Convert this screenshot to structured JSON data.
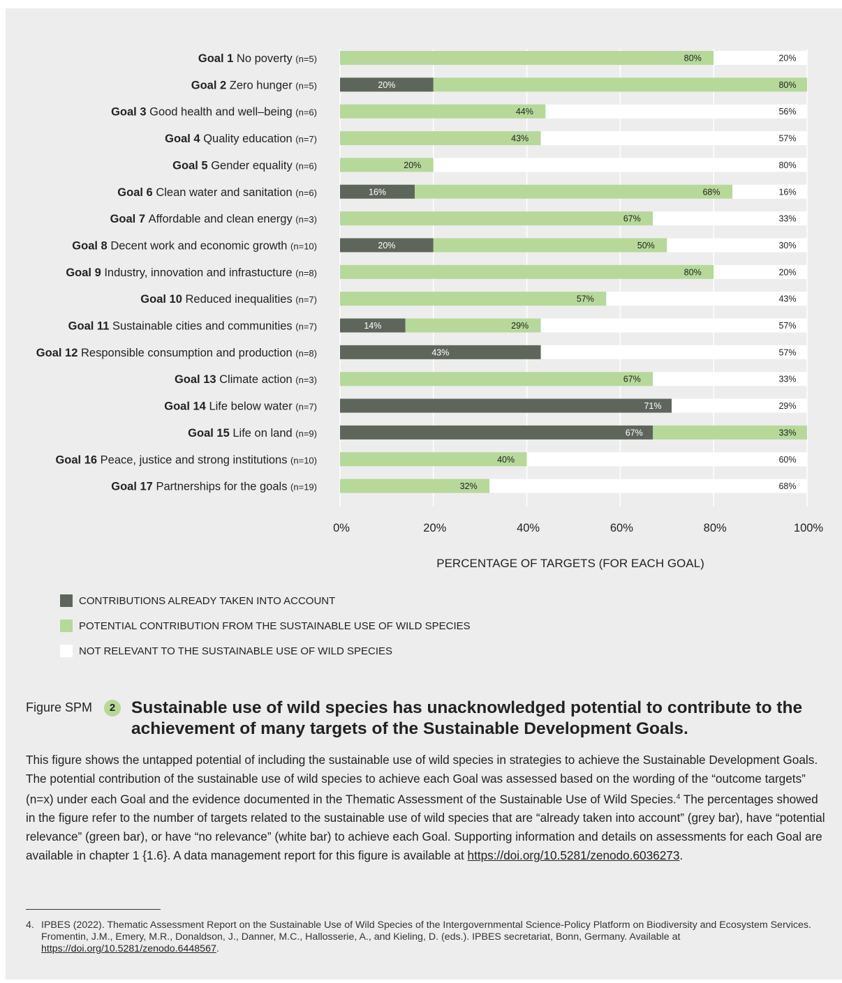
{
  "chart_data": {
    "type": "bar",
    "stacked": true,
    "orientation": "horizontal",
    "categories": [
      {
        "goal": "Goal 1",
        "name": "No poverty",
        "n": "(n=5)"
      },
      {
        "goal": "Goal 2",
        "name": "Zero hunger",
        "n": "(n=5)"
      },
      {
        "goal": "Goal 3",
        "name": "Good health and well–being",
        "n": "(n=6)"
      },
      {
        "goal": "Goal 4",
        "name": "Quality education",
        "n": "(n=7)"
      },
      {
        "goal": "Goal 5",
        "name": "Gender equality",
        "n": "(n=6)"
      },
      {
        "goal": "Goal 6",
        "name": "Clean water and sanitation",
        "n": "(n=6)"
      },
      {
        "goal": "Goal 7",
        "name": "Affordable and clean energy",
        "n": "(n=3)"
      },
      {
        "goal": "Goal 8",
        "name": "Decent work and economic growth",
        "n": "(n=10)"
      },
      {
        "goal": "Goal 9",
        "name": "Industry, innovation and infrastucture",
        "n": "(n=8)"
      },
      {
        "goal": "Goal 10",
        "name": "Reduced inequalities",
        "n": "(n=7)"
      },
      {
        "goal": "Goal 11",
        "name": "Sustainable cities and communities",
        "n": "(n=7)"
      },
      {
        "goal": "Goal 12",
        "name": "Responsible consumption and production",
        "n": "(n=8)"
      },
      {
        "goal": "Goal 13",
        "name": "Climate action",
        "n": "(n=3)"
      },
      {
        "goal": "Goal 14",
        "name": "Life below water",
        "n": "(n=7)"
      },
      {
        "goal": "Goal 15",
        "name": "Life on land",
        "n": "(n=9)"
      },
      {
        "goal": "Goal 16",
        "name": "Peace, justice and strong institutions",
        "n": "(n=10)"
      },
      {
        "goal": "Goal 17",
        "name": "Partnerships for the goals",
        "n": "(n=19)"
      }
    ],
    "series": [
      {
        "name": "CONTRIBUTIONS ALREADY TAKEN INTO ACCOUNT",
        "color": "#5e665c",
        "values": [
          0,
          20,
          0,
          0,
          0,
          16,
          0,
          20,
          0,
          0,
          14,
          43,
          0,
          71,
          67,
          0,
          0
        ]
      },
      {
        "name": "POTENTIAL CONTRIBUTION FROM THE SUSTAINABLE USE OF WILD SPECIES",
        "color": "#b6d99a",
        "values": [
          80,
          80,
          44,
          43,
          20,
          68,
          67,
          50,
          80,
          57,
          29,
          0,
          67,
          0,
          33,
          40,
          32
        ]
      },
      {
        "name": "NOT RELEVANT TO THE SUSTAINABLE USE OF WILD SPECIES",
        "color": "#ffffff",
        "values": [
          20,
          0,
          56,
          57,
          80,
          16,
          33,
          30,
          20,
          43,
          57,
          57,
          33,
          29,
          0,
          60,
          68
        ]
      }
    ],
    "x_ticks": [
      "0%",
      "20%",
      "40%",
      "60%",
      "80%",
      "100%"
    ],
    "xlim": [
      0,
      100
    ],
    "xlabel": "PERCENTAGE OF TARGETS (FOR EACH GOAL)",
    "legend_position": "bottom-left",
    "grid": true
  },
  "caption": {
    "label": "Figure SPM",
    "number": "2",
    "title": "Sustainable use of wild species has unacknowledged potential to contribute to the achievement of many targets of the Sustainable Development Goals."
  },
  "body": {
    "text": "This figure shows the untapped potential of including the sustainable use of wild species in strategies to achieve the Sustainable Development Goals. The potential contribution of the sustainable use of wild species to achieve each Goal was assessed based on the wording of the “outcome targets” (n=x) under each Goal and the evidence documented in the Thematic Assessment of the Sustainable Use of Wild Species.",
    "footnote_ref": "4",
    "text_2": " The percentages showed in the figure refer to the number of targets related to the sustainable use of wild species that are “already taken into account” (grey bar), have “potential relevance” (green bar), or have “no relevance” (white bar) to achieve each Goal. Supporting information and details on assessments for each Goal are available in chapter 1 {1.6}. A data management report for this figure is available at ",
    "link": "https://doi.org/10.5281/zenodo.6036273",
    "end": "."
  },
  "footnote": {
    "number": "4.",
    "text": "IPBES (2022). Thematic Assessment Report on the Sustainable Use of Wild Species of the Intergovernmental Science-Policy Platform on Biodiversity and Ecosystem Services. Fromentin, J.M., Emery, M.R., Donaldson, J., Danner, M.C., Hallosserie, A., and Kieling, D. (eds.). IPBES secretariat, Bonn, Germany. Available at ",
    "link": "https://doi.org/10.5281/zenodo.6448567",
    "end": "."
  }
}
